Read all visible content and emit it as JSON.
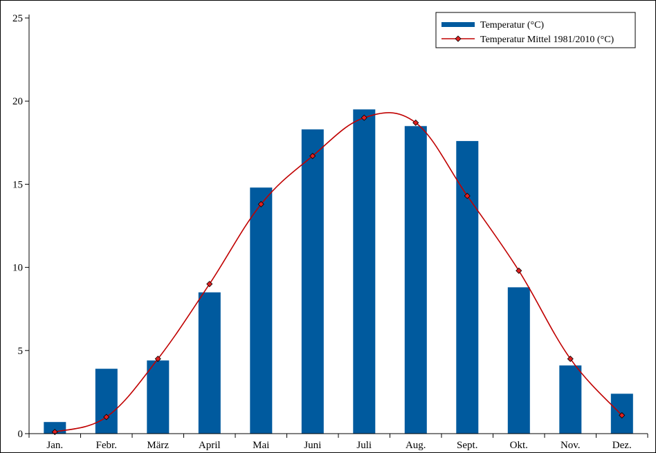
{
  "chart_data": {
    "type": "bar",
    "title": "",
    "xlabel": "",
    "ylabel": "",
    "ylim": [
      0,
      25
    ],
    "yticks": [
      0,
      5,
      10,
      15,
      20,
      25
    ],
    "grid": false,
    "legend_position": "top-right",
    "categories": [
      "Jan.",
      "Febr.",
      "März",
      "April",
      "Mai",
      "Juni",
      "Juli",
      "Aug.",
      "Sept.",
      "Okt.",
      "Nov.",
      "Dez."
    ],
    "series": [
      {
        "name": "Temperatur (°C)",
        "kind": "bar",
        "color": "#005a9e",
        "values": [
          0.7,
          3.9,
          4.4,
          8.5,
          14.8,
          18.3,
          19.5,
          18.5,
          17.6,
          8.8,
          4.1,
          2.4
        ]
      },
      {
        "name": "Temperatur Mittel 1981/2010 (°C)",
        "kind": "line",
        "color": "#c00000",
        "marker": "diamond",
        "values": [
          0.1,
          1.0,
          4.5,
          9.0,
          13.8,
          16.7,
          19.0,
          18.7,
          14.3,
          9.8,
          4.5,
          1.1
        ]
      }
    ]
  }
}
